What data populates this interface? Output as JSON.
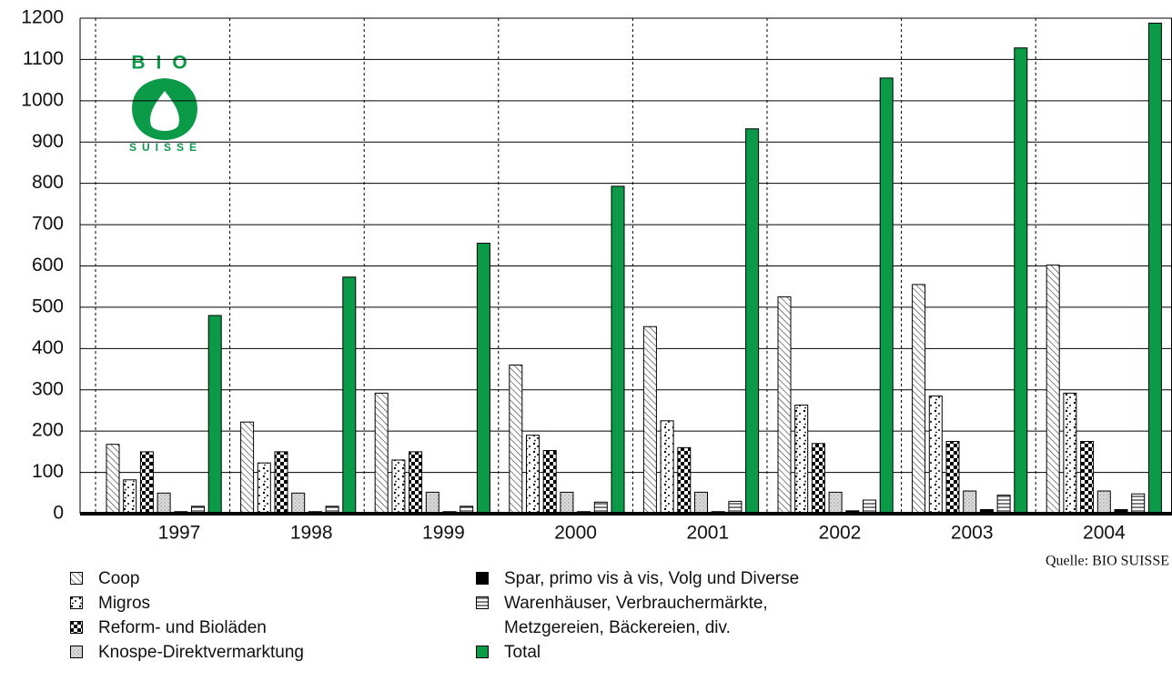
{
  "chart_data": {
    "type": "bar",
    "categories": [
      "1997",
      "1998",
      "1999",
      "2000",
      "2001",
      "2002",
      "2003",
      "2004"
    ],
    "series": [
      {
        "name": "Coop",
        "color": "#000000",
        "pattern": "hatch",
        "values": [
          168,
          222,
          292,
          360,
          453,
          525,
          555,
          602
        ]
      },
      {
        "name": "Migros",
        "color": "#000000",
        "pattern": "speckle",
        "values": [
          82,
          123,
          130,
          190,
          225,
          263,
          285,
          292
        ]
      },
      {
        "name": "Reform- und Bioläden",
        "color": "#000000",
        "pattern": "checker",
        "values": [
          150,
          150,
          150,
          153,
          160,
          170,
          175,
          175
        ]
      },
      {
        "name": "Knospe-Direktvermarktung",
        "color": "#000000",
        "pattern": "grain",
        "values": [
          50,
          50,
          52,
          52,
          52,
          52,
          55,
          55
        ]
      },
      {
        "name": "Spar, primo vis à vis, Volg und Diverse",
        "color": "#000000",
        "pattern": "solid",
        "values": [
          5,
          5,
          5,
          5,
          5,
          7,
          10,
          10
        ]
      },
      {
        "name": "Warenhäuser, Verbrauchermärkte, Metzgereien, Bäckereien, div.",
        "color": "#000000",
        "pattern": "lines",
        "values": [
          18,
          18,
          18,
          28,
          30,
          33,
          45,
          48
        ]
      },
      {
        "name": "Total",
        "color": "#0a9a48",
        "pattern": "solid",
        "values": [
          480,
          573,
          655,
          793,
          932,
          1055,
          1128,
          1188
        ]
      }
    ],
    "ylim": [
      0,
      1200
    ],
    "yticks": [
      0,
      100,
      200,
      300,
      400,
      500,
      600,
      700,
      800,
      900,
      1000,
      1100,
      1200
    ],
    "grid": true,
    "source": "Quelle: BIO SUISSE",
    "logo": {
      "top": "BIO",
      "bottom": "SUISSE",
      "color": "#0a9a48"
    }
  }
}
